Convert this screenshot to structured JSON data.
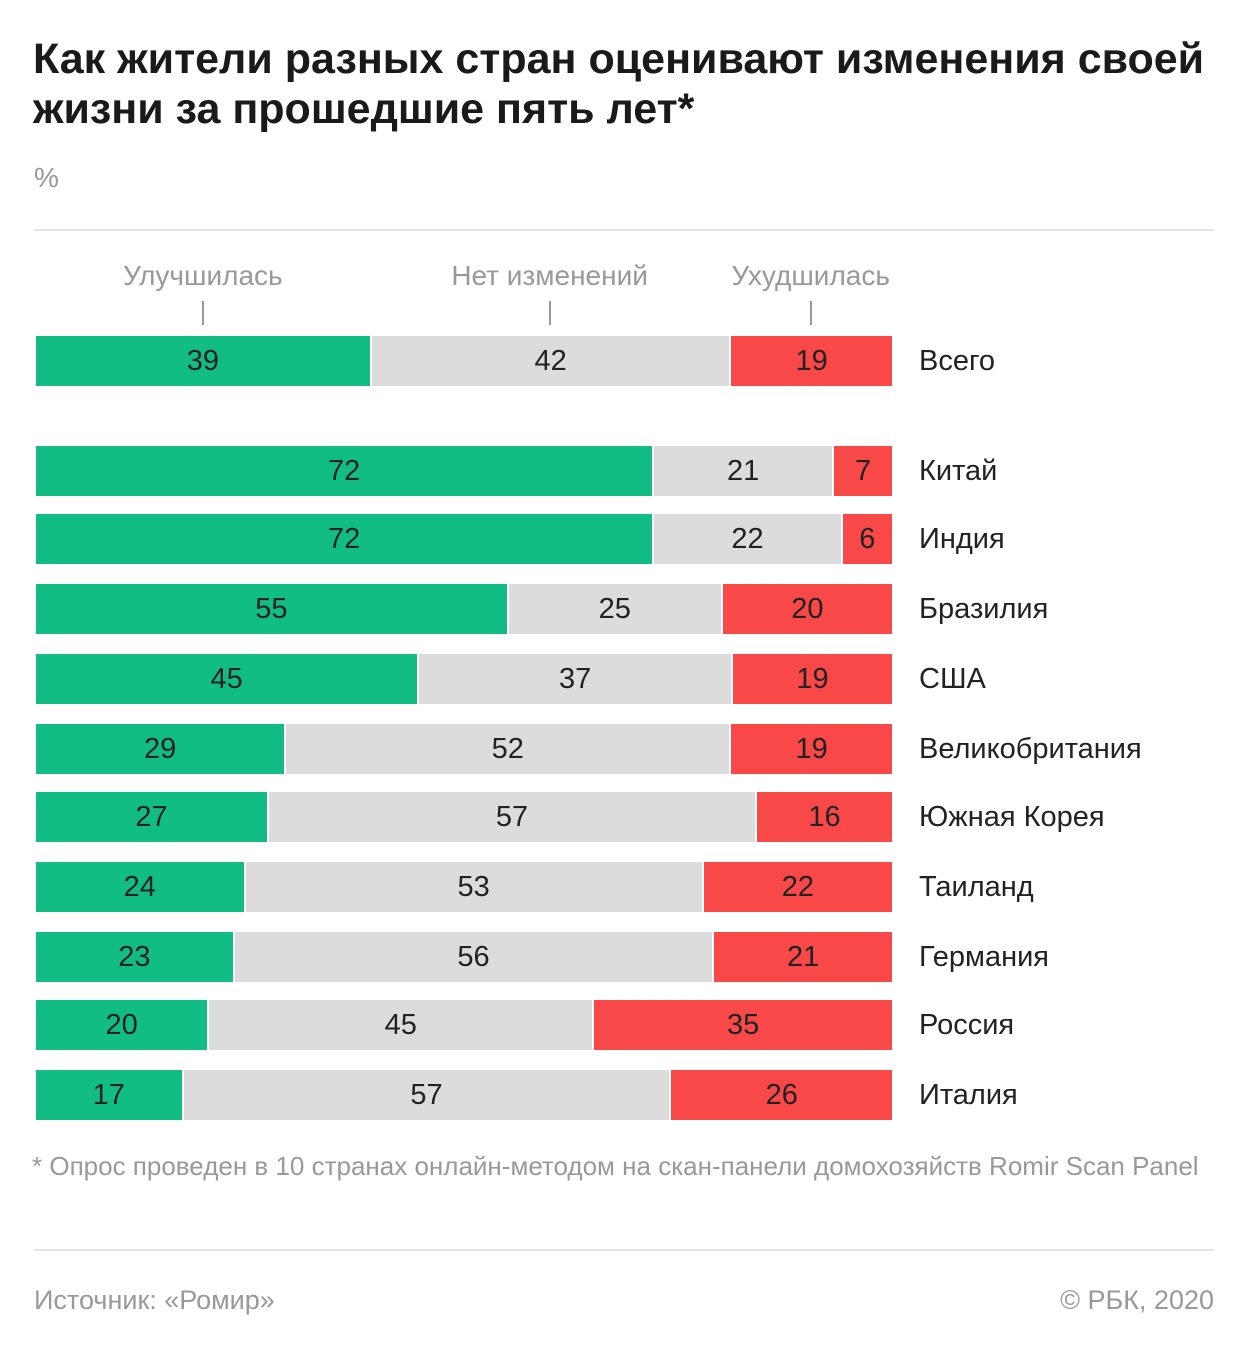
{
  "header": {
    "title": "Как жители разных стран оценивают изменения своей жизни за прошедшие пять лет*",
    "unit": "%"
  },
  "colors": {
    "improved": "#12bd85",
    "unchanged": "#dcdcdc",
    "worsened": "#f84848"
  },
  "chart_data": {
    "type": "bar",
    "stacked": true,
    "orientation": "horizontal",
    "categories": [
      "Всего",
      "Китай",
      "Индия",
      "Бразилия",
      "США",
      "Великобритания",
      "Южная Корея",
      "Таиланд",
      "Германия",
      "Россия",
      "Италия"
    ],
    "series": [
      {
        "name": "Улучшилась",
        "values": [
          39,
          72,
          72,
          55,
          45,
          29,
          27,
          24,
          23,
          20,
          17
        ]
      },
      {
        "name": "Нет изменений",
        "values": [
          42,
          21,
          22,
          25,
          37,
          52,
          57,
          53,
          56,
          45,
          57
        ]
      },
      {
        "name": "Ухудшилась",
        "values": [
          19,
          7,
          6,
          20,
          19,
          19,
          16,
          22,
          21,
          35,
          26
        ]
      }
    ],
    "xlim": [
      0,
      100
    ]
  },
  "footer": {
    "note": "* Опрос проведен в 10 странах онлайн-методом на скан-панели домохозяйств Romir Scan Panel",
    "source": "Источник: «Ромир»",
    "copyright": "© РБК, 2020"
  }
}
